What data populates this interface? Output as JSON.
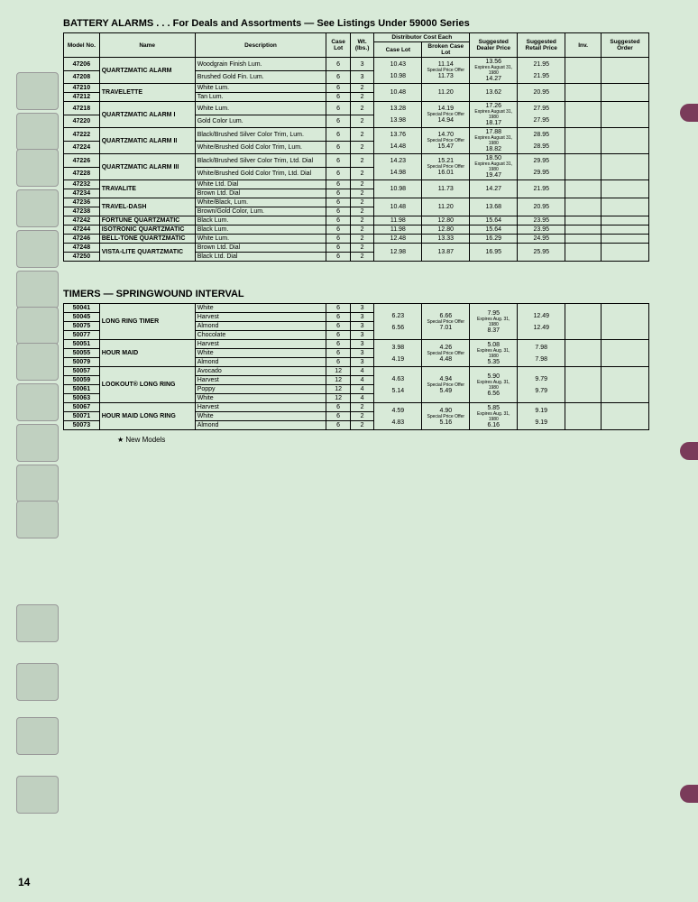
{
  "section1": {
    "title": "BATTERY ALARMS . . . For Deals and Assortments — See Listings Under 59000 Series",
    "headers": {
      "model": "Model No.",
      "name": "Name",
      "desc": "Description",
      "caselot": "Case Lot",
      "wt": "Wt. (lbs.)",
      "distcost": "Distributor Cost Each",
      "caselot2": "Case Lot",
      "broken": "Broken Case Lot",
      "dealer": "Suggested Dealer Price",
      "retail": "Suggested Retail Price",
      "inv": "Inv.",
      "order": "Suggested Order"
    },
    "special": "Special Price Offer Expires August 31, 1980",
    "rows": [
      {
        "model": "47206",
        "name": "QUARTZMATIC ALARM",
        "desc": "Woodgrain Finish Lum.",
        "lot": "6",
        "wt": "3",
        "p1": "10.43",
        "p2": "11.14",
        "p3": "13.56",
        "p4": "21.95",
        "span": 2,
        "special": true,
        "sp1": "10.98",
        "sp2": "11.73",
        "sp3": "14.27",
        "sp4": "21.95"
      },
      {
        "model": "47208",
        "desc": "Brushed Gold Fin. Lum.",
        "lot": "6",
        "wt": "3"
      },
      {
        "model": "47210",
        "name": "TRAVELETTE",
        "desc": "White Lum.",
        "lot": "6",
        "wt": "2",
        "p1": "10.48",
        "p2": "11.20",
        "p3": "13.62",
        "p4": "20.95",
        "span": 2,
        "pspan": 2
      },
      {
        "model": "47212",
        "desc": "Tan Lum.",
        "lot": "6",
        "wt": "2"
      },
      {
        "model": "47218",
        "name": "QUARTZMATIC ALARM I",
        "desc": "White Lum.",
        "lot": "6",
        "wt": "2",
        "p1": "13.28",
        "p2": "14.19",
        "p3": "17.26",
        "p4": "27.95",
        "span": 2,
        "special": true,
        "sp1": "13.98",
        "sp2": "14.94",
        "sp3": "18.17",
        "sp4": "27.95"
      },
      {
        "model": "47220",
        "desc": "Gold Color Lum.",
        "lot": "6",
        "wt": "2"
      },
      {
        "model": "47222",
        "name": "QUARTZMATIC ALARM II",
        "desc": "Black/Brushed Silver Color Trim, Lum.",
        "lot": "6",
        "wt": "2",
        "p1": "13.76",
        "p2": "14.70",
        "p3": "17.88",
        "p4": "28.95",
        "span": 2,
        "special": true,
        "sp1": "14.48",
        "sp2": "15.47",
        "sp3": "18.82",
        "sp4": "28.95"
      },
      {
        "model": "47224",
        "desc": "White/Brushed Gold Color Trim, Lum.",
        "lot": "6",
        "wt": "2"
      },
      {
        "model": "47226",
        "name": "QUARTZMATIC ALARM III",
        "desc": "Black/Brushed Silver Color Trim, Ltd. Dial",
        "lot": "6",
        "wt": "2",
        "p1": "14.23",
        "p2": "15.21",
        "p3": "18.50",
        "p4": "29.95",
        "span": 2,
        "special": true,
        "sp1": "14.98",
        "sp2": "16.01",
        "sp3": "19.47",
        "sp4": "29.95"
      },
      {
        "model": "47228",
        "desc": "White/Brushed Gold Color Trim, Ltd. Dial",
        "lot": "6",
        "wt": "2"
      },
      {
        "model": "47232",
        "name": "TRAVALITE",
        "desc": "White Ltd. Dial",
        "lot": "6",
        "wt": "2",
        "p1": "10.98",
        "p2": "11.73",
        "p3": "14.27",
        "p4": "21.95",
        "span": 2,
        "pspan": 2
      },
      {
        "model": "47234",
        "desc": "Brown Ltd. Dial",
        "lot": "6",
        "wt": "2"
      },
      {
        "model": "47236",
        "name": "TRAVEL-DASH",
        "desc": "White/Black, Lum.",
        "lot": "6",
        "wt": "2",
        "p1": "10.48",
        "p2": "11.20",
        "p3": "13.68",
        "p4": "20.95",
        "span": 2,
        "pspan": 2
      },
      {
        "model": "47238",
        "desc": "Brown/Gold Color, Lum.",
        "lot": "6",
        "wt": "2"
      },
      {
        "model": "47242",
        "name": "FORTUNE QUARTZMATIC",
        "desc": "Black Lum.",
        "lot": "6",
        "wt": "2",
        "p1": "11.98",
        "p2": "12.80",
        "p3": "15.64",
        "p4": "23.95",
        "span": 1
      },
      {
        "model": "47244",
        "name": "ISOTRONIC QUARTZMATIC",
        "desc": "Black Lum.",
        "lot": "6",
        "wt": "2",
        "p1": "11.98",
        "p2": "12.80",
        "p3": "15.64",
        "p4": "23.95",
        "span": 1
      },
      {
        "model": "47246",
        "name": "BELL-TONE QUARTZMATIC",
        "desc": "White Lum.",
        "lot": "6",
        "wt": "2",
        "p1": "12.48",
        "p2": "13.33",
        "p3": "16.29",
        "p4": "24.95",
        "span": 1
      },
      {
        "model": "47248",
        "name": "VISTA-LITE QUARTZMATIC",
        "desc": "Brown Ltd. Dial",
        "lot": "6",
        "wt": "2",
        "p1": "12.98",
        "p2": "13.87",
        "p3": "16.95",
        "p4": "25.95",
        "span": 2,
        "pspan": 2
      },
      {
        "model": "47250",
        "desc": "Black Ltd. Dial",
        "lot": "6",
        "wt": "2"
      }
    ]
  },
  "section2": {
    "title": "TIMERS — SPRINGWOUND INTERVAL",
    "special": "Special Price Offer Expires Aug. 31, 1980",
    "rows": [
      {
        "model": "50041",
        "name": "LONG RING TIMER",
        "desc": "White",
        "lot": "6",
        "wt": "3",
        "span": 4,
        "p1": "6.23",
        "p2": "6.66",
        "p3": "7.95",
        "p4": "12.49",
        "special": true,
        "sp1": "6.56",
        "sp2": "7.01",
        "sp3": "8.37",
        "sp4": "12.49",
        "pspan": 4
      },
      {
        "model": "50045",
        "desc": "Harvest",
        "lot": "6",
        "wt": "3"
      },
      {
        "model": "50075",
        "desc": "Almond",
        "lot": "6",
        "wt": "3"
      },
      {
        "model": "50077",
        "desc": "Chocolate",
        "lot": "6",
        "wt": "3"
      },
      {
        "model": "50051",
        "name": "HOUR MAID",
        "desc": "Harvest",
        "lot": "6",
        "wt": "3",
        "span": 3,
        "p1": "3.98",
        "p2": "4.26",
        "p3": "5.08",
        "p4": "7.98",
        "special": true,
        "sp1": "4.19",
        "sp2": "4.48",
        "sp3": "5.35",
        "sp4": "7.98",
        "pspan": 3
      },
      {
        "model": "50055",
        "desc": "White",
        "lot": "6",
        "wt": "3"
      },
      {
        "model": "50079",
        "desc": "Almond",
        "lot": "6",
        "wt": "3"
      },
      {
        "model": "50057",
        "name": "LOOKOUT® LONG RING",
        "desc": "Avocado",
        "lot": "12",
        "wt": "4",
        "span": 4,
        "p1": "4.63",
        "p2": "4.94",
        "p3": "5.90",
        "p4": "9.79",
        "special": true,
        "sp1": "5.14",
        "sp2": "5.49",
        "sp3": "6.56",
        "sp4": "9.79",
        "pspan": 4
      },
      {
        "model": "50059",
        "desc": "Harvest",
        "lot": "12",
        "wt": "4"
      },
      {
        "model": "50061",
        "desc": "Poppy",
        "lot": "12",
        "wt": "4"
      },
      {
        "model": "50063",
        "desc": "White",
        "lot": "12",
        "wt": "4"
      },
      {
        "model": "50067",
        "name": "HOUR MAID LONG RING",
        "desc": "Harvest",
        "lot": "6",
        "wt": "2",
        "span": 3,
        "p1": "4.59",
        "p2": "4.90",
        "p3": "5.85",
        "p4": "9.19",
        "special": true,
        "sp1": "4.83",
        "sp2": "5.16",
        "sp3": "6.16",
        "sp4": "9.19",
        "pspan": 3
      },
      {
        "model": "50071",
        "desc": "White",
        "lot": "6",
        "wt": "2"
      },
      {
        "model": "50073",
        "desc": "Almond",
        "lot": "6",
        "wt": "2"
      }
    ]
  },
  "footnote": "★ New Models",
  "pagenum": "14",
  "colors": {
    "bg": "#d8ead8",
    "border": "#000000",
    "dot": "#7a3b5a"
  }
}
